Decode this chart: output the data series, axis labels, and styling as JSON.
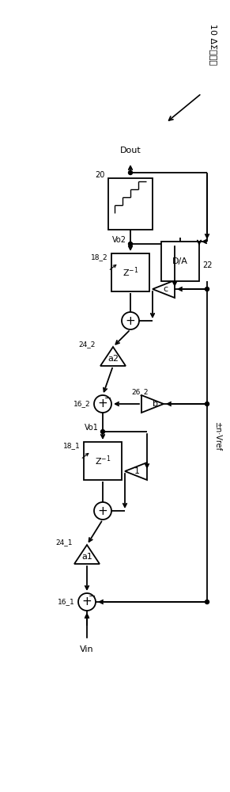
{
  "bg_color": "#ffffff",
  "line_color": "#000000",
  "title": "10 ΔΣ调制器",
  "dout": "Dout",
  "vin": "Vin",
  "vref": "±n·Vref",
  "vo1": "Vo1",
  "vo2": "Vo2",
  "lbl_20": "20",
  "lbl_22": "22",
  "lbl_181": "18_1",
  "lbl_182": "18_2",
  "lbl_161": "16_1",
  "lbl_162": "16_2",
  "lbl_241": "24_1",
  "lbl_242": "24_2",
  "lbl_262": "26_2",
  "da": "D/A",
  "zinv": "Z⁻¹",
  "a1": "a1",
  "a2": "a2",
  "b": "b",
  "c": "c",
  "one": "1"
}
